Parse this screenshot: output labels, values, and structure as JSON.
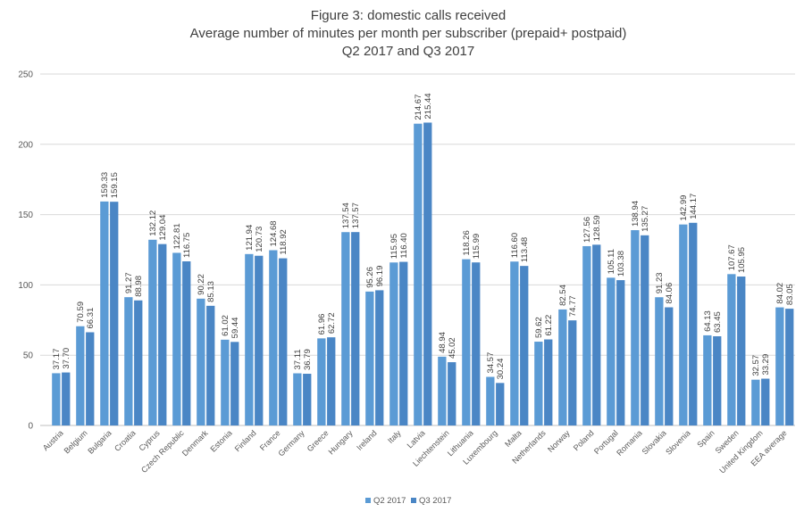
{
  "chart_data": {
    "type": "bar",
    "title_lines": [
      "Figure 3: domestic calls received",
      "Average number of minutes per month per subscriber (prepaid+ postpaid)",
      "Q2 2017 and Q3 2017"
    ],
    "categories": [
      "Austria",
      "Belgium",
      "Bulgaria",
      "Croatia",
      "Cyprus",
      "Czech Republic",
      "Denmark",
      "Estonia",
      "Finland",
      "France",
      "Germany",
      "Greece",
      "Hungary",
      "Ireland",
      "Italy",
      "Latvia",
      "Liechtenstein",
      "Lithuania",
      "Luxembourg",
      "Malta",
      "Netherlands",
      "Norway",
      "Poland",
      "Portugal",
      "Romania",
      "Slovakia",
      "Slovenia",
      "Spain",
      "Sweden",
      "United Kingdom",
      "EEA average"
    ],
    "series": [
      {
        "name": "Q2 2017",
        "color": "#5b9bd5",
        "values": [
          37.17,
          70.59,
          159.33,
          91.27,
          132.12,
          122.81,
          90.22,
          61.02,
          121.94,
          124.68,
          37.11,
          61.96,
          137.54,
          95.26,
          115.95,
          214.67,
          48.94,
          118.26,
          34.57,
          116.6,
          59.62,
          82.54,
          127.56,
          105.11,
          138.94,
          91.23,
          142.99,
          64.13,
          107.67,
          32.57,
          84.02
        ],
        "labels": [
          "37.17",
          "70.59",
          "159.33",
          "91.27",
          "132.12",
          "122.81",
          "90.22",
          "61.02",
          "121.94",
          "124.68",
          "37.11",
          "61.96",
          "137.54",
          "95.26",
          "115.95",
          "214.67",
          "48.94",
          "118.26",
          "34.57",
          "116.60",
          "59.62",
          "82.54",
          "127.56",
          "105.11",
          "138.94",
          "91.23",
          "142.99",
          "64.13",
          "107.67",
          "32.57",
          "84.02"
        ]
      },
      {
        "name": "Q3 2017",
        "color": "#4a86c5",
        "values": [
          37.7,
          66.31,
          159.15,
          88.98,
          129.04,
          116.75,
          85.13,
          59.44,
          120.73,
          118.92,
          36.79,
          62.72,
          137.57,
          96.19,
          116.4,
          215.44,
          45.02,
          115.99,
          30.24,
          113.48,
          61.22,
          74.77,
          128.59,
          103.38,
          135.27,
          84.06,
          144.17,
          63.45,
          105.95,
          33.29,
          83.05
        ],
        "labels": [
          "37.70",
          "66.31",
          "159.15",
          "88.98",
          "129.04",
          "116.75",
          "85.13",
          "59.44",
          "120.73",
          "118.92",
          "36.79",
          "62.72",
          "137.57",
          "96.19",
          "116.40",
          "215.44",
          "45.02",
          "115.99",
          "30.24",
          "113.48",
          "61.22",
          "74.77",
          "128.59",
          "103.38",
          "135.27",
          "84.06",
          "144.17",
          "63.45",
          "105.95",
          "33.29",
          "83.05"
        ]
      }
    ],
    "ylim": [
      0,
      250
    ],
    "yticks": [
      0,
      50,
      100,
      150,
      200,
      250
    ],
    "grid": true,
    "legend_position": "bottom-center",
    "xlabel": "",
    "ylabel": ""
  }
}
